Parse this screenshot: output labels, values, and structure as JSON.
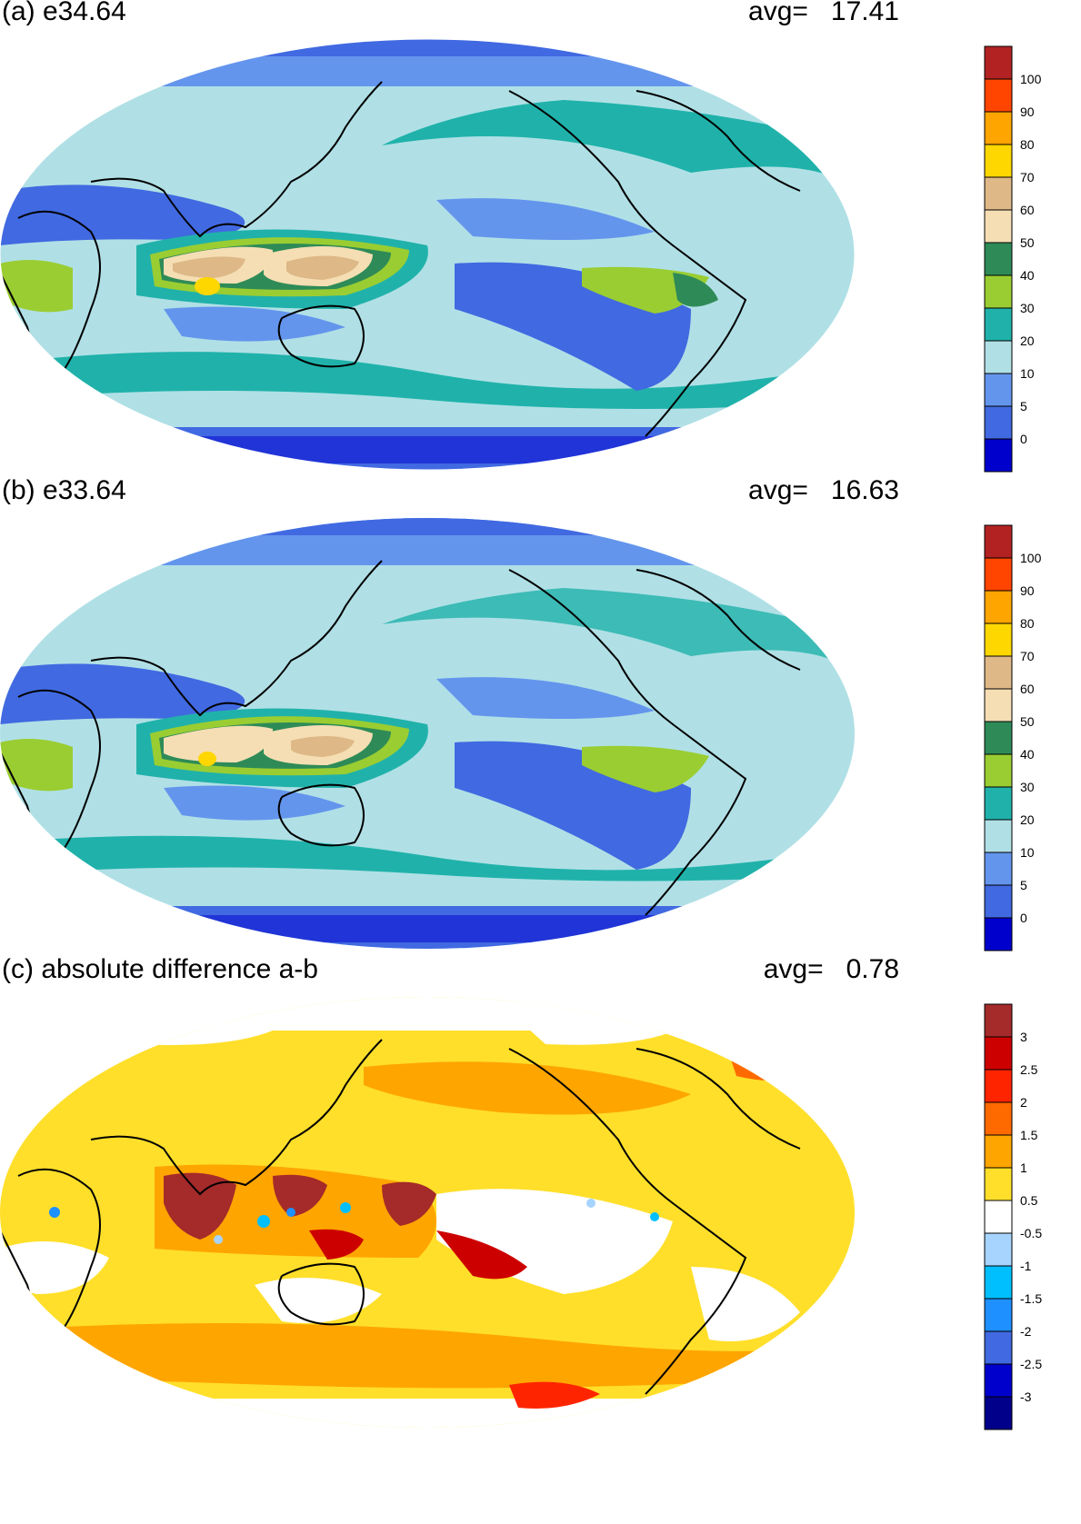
{
  "panels": [
    {
      "title": "(a) e34.64",
      "avg_label": "avg=",
      "avg_value": "17.41",
      "colorbar": {
        "labels": [
          "100",
          "90",
          "80",
          "70",
          "60",
          "50",
          "40",
          "30",
          "20",
          "10",
          "5",
          "0"
        ],
        "colors": [
          "#b22222",
          "#ff4500",
          "#ffa500",
          "#ffd700",
          "#deb887",
          "#f5deb3",
          "#2e8b57",
          "#9acd32",
          "#20b2aa",
          "#b0e0e6",
          "#6495ed",
          "#4169e1",
          "#0000cd"
        ]
      }
    },
    {
      "title": "(b) e33.64",
      "avg_label": "avg=",
      "avg_value": "16.63",
      "colorbar": {
        "labels": [
          "100",
          "90",
          "80",
          "70",
          "60",
          "50",
          "40",
          "30",
          "20",
          "10",
          "5",
          "0"
        ],
        "colors": [
          "#b22222",
          "#ff4500",
          "#ffa500",
          "#ffd700",
          "#deb887",
          "#f5deb3",
          "#2e8b57",
          "#9acd32",
          "#20b2aa",
          "#b0e0e6",
          "#6495ed",
          "#4169e1",
          "#0000cd"
        ]
      }
    },
    {
      "title": "(c) absolute difference a-b",
      "avg_label": "avg=",
      "avg_value": "0.78",
      "colorbar": {
        "labels": [
          "3",
          "2.5",
          "2",
          "1.5",
          "1",
          "0.5",
          "-0.5",
          "-1",
          "-1.5",
          "-2",
          "-2.5",
          "-3"
        ],
        "colors": [
          "#a52a2a",
          "#cd0000",
          "#ff2400",
          "#ff6a00",
          "#ffa500",
          "#ffdf2a",
          "#ffffff",
          "#a6d4ff",
          "#00bfff",
          "#1e90ff",
          "#4169e1",
          "#0000cd",
          "#00008b"
        ]
      }
    }
  ]
}
